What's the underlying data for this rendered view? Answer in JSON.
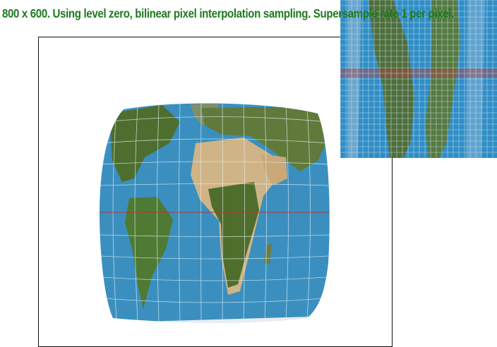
{
  "status": {
    "text": "800 x 600. Using level zero, bilinear pixel interpolation sampling. Supersample rate 1 per pixel.",
    "color": "#1f7a1f"
  },
  "viewport": {
    "background": "#ffffff",
    "frame_color": "#111111"
  },
  "map": {
    "ocean_color": "#3a8fbf",
    "land_green": "#4d6e2e",
    "land_desert": "#cfb487",
    "grid_color": "#e6f1f8",
    "equator_color": "#b23a3a"
  },
  "zoom": {
    "background": "#2f8ec7",
    "highlight_color": "#b04040",
    "grid_color": "#c8dbe8"
  }
}
